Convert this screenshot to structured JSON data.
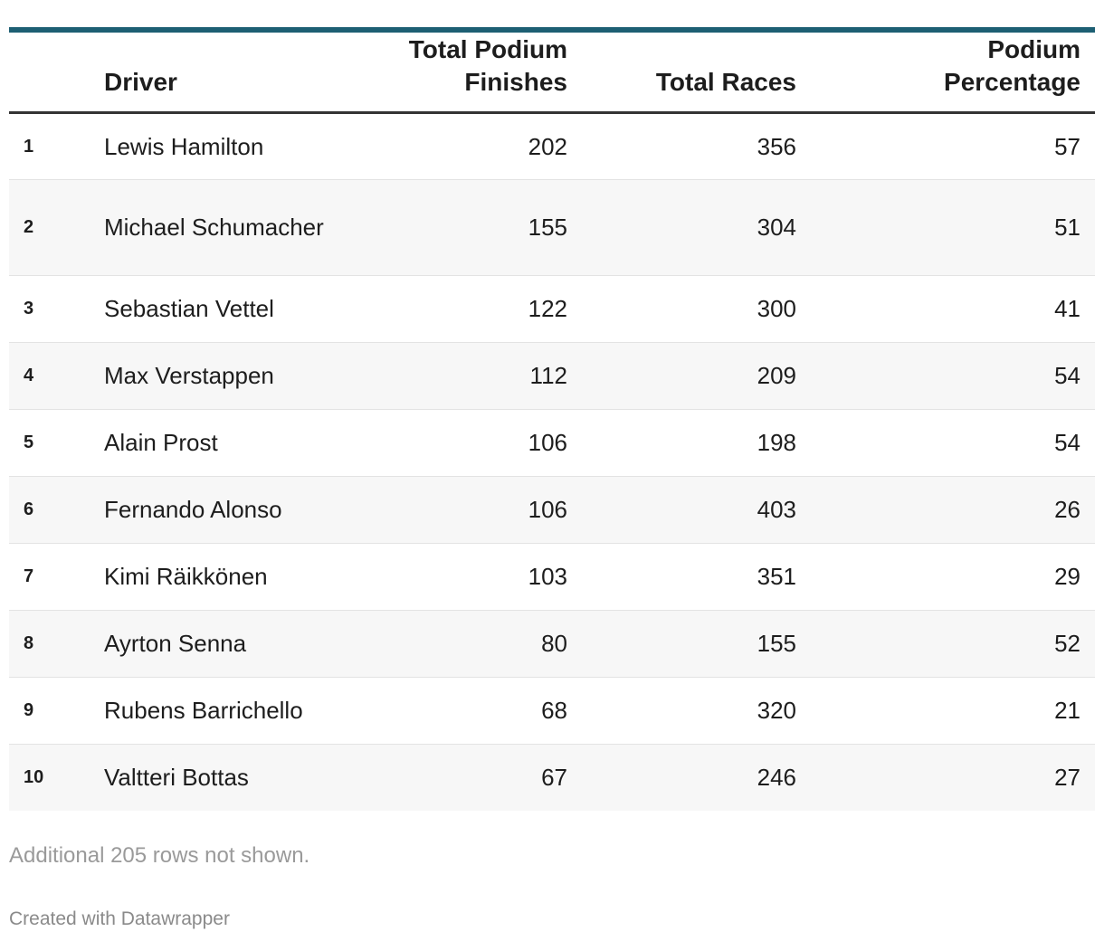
{
  "chart_data": {
    "type": "table",
    "columns": [
      "",
      "Driver",
      "Total Podium Finishes",
      "Total Races",
      "Podium Percentage"
    ],
    "header": {
      "rank": "",
      "driver": "Driver",
      "podium_line1": "Total Podium",
      "podium_line2": "Finishes",
      "races": "Total Races",
      "pct_line1": "Podium",
      "pct_line2": "Percentage"
    },
    "rows": [
      {
        "rank": "1",
        "driver": "Lewis Hamilton",
        "podiums": 202,
        "races": 356,
        "percentage": 57
      },
      {
        "rank": "2",
        "driver": "Michael Schumacher",
        "podiums": 155,
        "races": 304,
        "percentage": 51
      },
      {
        "rank": "3",
        "driver": "Sebastian Vettel",
        "podiums": 122,
        "races": 300,
        "percentage": 41
      },
      {
        "rank": "4",
        "driver": "Max Verstappen",
        "podiums": 112,
        "races": 209,
        "percentage": 54
      },
      {
        "rank": "5",
        "driver": "Alain Prost",
        "podiums": 106,
        "races": 198,
        "percentage": 54
      },
      {
        "rank": "6",
        "driver": "Fernando Alonso",
        "podiums": 106,
        "races": 403,
        "percentage": 26
      },
      {
        "rank": "7",
        "driver": "Kimi Räikkönen",
        "podiums": 103,
        "races": 351,
        "percentage": 29
      },
      {
        "rank": "8",
        "driver": "Ayrton Senna",
        "podiums": 80,
        "races": 155,
        "percentage": 52
      },
      {
        "rank": "9",
        "driver": "Rubens Barrichello",
        "podiums": 68,
        "races": 320,
        "percentage": 21
      },
      {
        "rank": "10",
        "driver": "Valtteri Bottas",
        "podiums": 67,
        "races": 246,
        "percentage": 27
      }
    ],
    "note": "Additional 205 rows not shown."
  },
  "footer": {
    "credit": "Created with Datawrapper"
  },
  "colors": {
    "top_rule": "#1d5f73",
    "header_rule": "#333333",
    "stripe": "#f7f7f7"
  }
}
